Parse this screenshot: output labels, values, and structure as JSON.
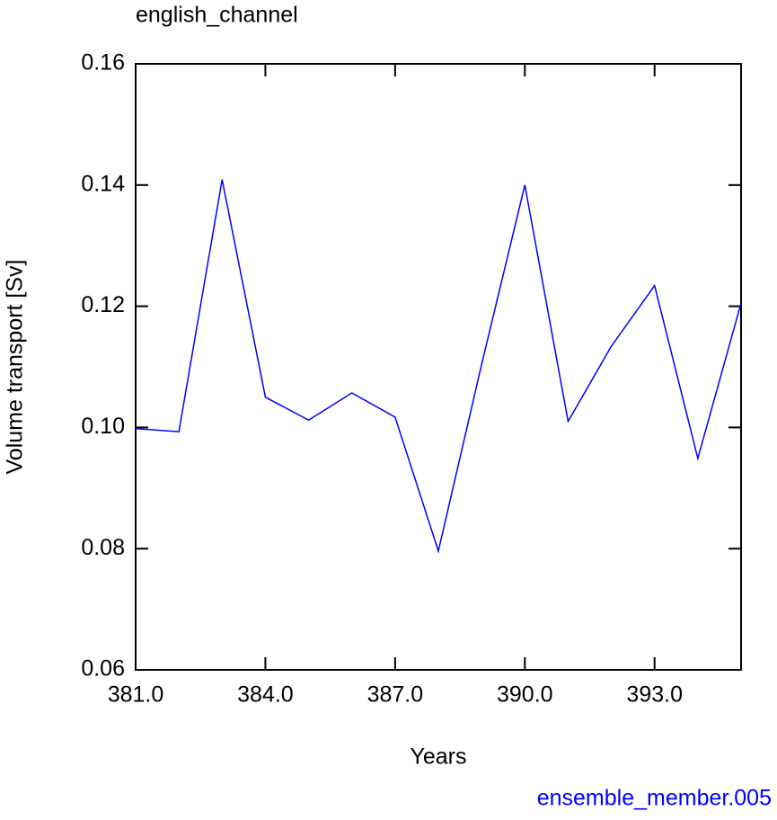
{
  "chart_data": {
    "type": "line",
    "title": "english_channel",
    "subtitle": "ensemble_member.005",
    "x_label": "Years",
    "y_label": "Volume transport [Sv]",
    "x": [
      381,
      382,
      383,
      384,
      385,
      386,
      387,
      388,
      389,
      390,
      391,
      392,
      393,
      394,
      395
    ],
    "series": [
      {
        "color": "#0000ff",
        "values": [
          0.0998,
          0.0993,
          0.1409,
          0.105,
          0.1012,
          0.1057,
          0.1017,
          0.0796,
          0.1104,
          0.14,
          0.101,
          0.1134,
          0.1234,
          0.0949,
          0.1205
        ]
      }
    ],
    "xlim": [
      381,
      395
    ],
    "xticks": [
      {
        "value": 381,
        "label": "381.0"
      },
      {
        "value": 384,
        "label": "384.0"
      },
      {
        "value": 387,
        "label": "387.0"
      },
      {
        "value": 390,
        "label": "390.0"
      },
      {
        "value": 393,
        "label": "393.0"
      }
    ],
    "ylim": [
      0.06,
      0.16
    ],
    "yticks": [
      0.06,
      0.08,
      {
        "value": 0.1,
        "label": "0.10"
      },
      0.12,
      0.14,
      0.16
    ]
  }
}
